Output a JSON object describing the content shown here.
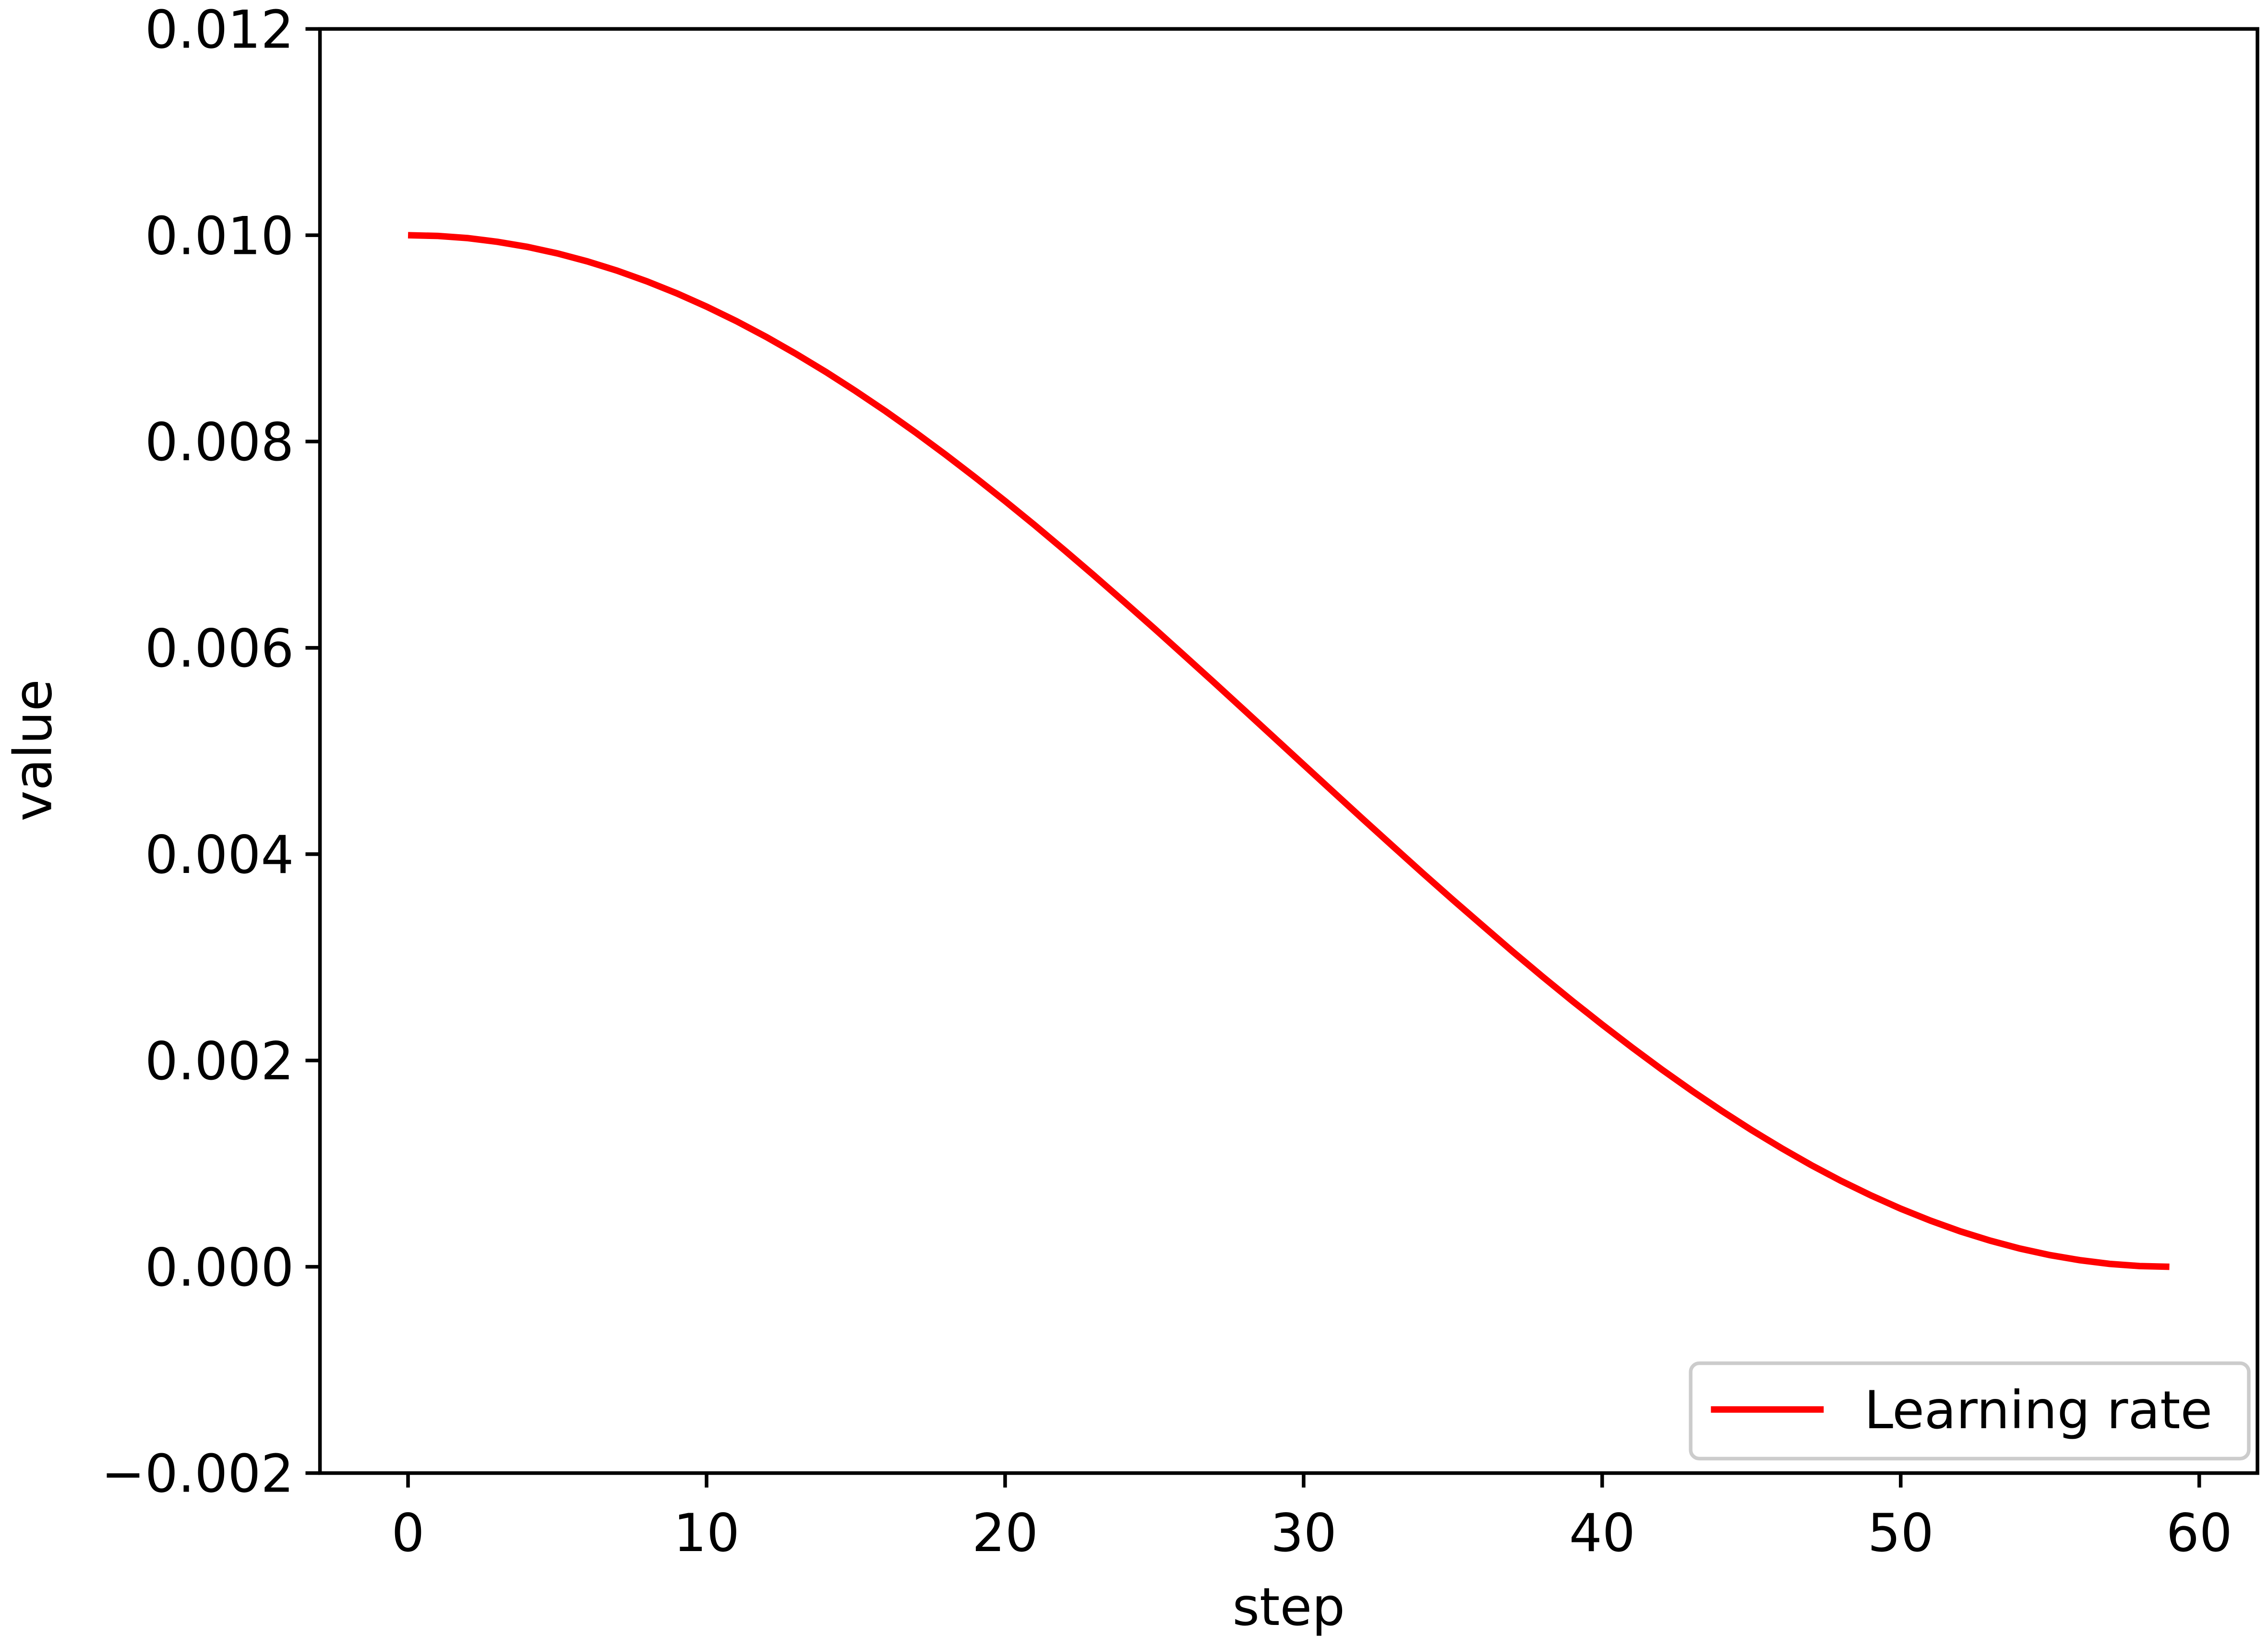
{
  "chart_data": {
    "type": "line",
    "xlabel": "step",
    "ylabel": "value",
    "x": [
      0,
      1,
      2,
      3,
      4,
      5,
      6,
      7,
      8,
      9,
      10,
      11,
      12,
      13,
      14,
      15,
      16,
      17,
      18,
      19,
      20,
      21,
      22,
      23,
      24,
      25,
      26,
      27,
      28,
      29,
      30,
      31,
      32,
      33,
      34,
      35,
      36,
      37,
      38,
      39,
      40,
      41,
      42,
      43,
      44,
      45,
      46,
      47,
      48,
      49,
      50,
      51,
      52,
      53,
      54,
      55,
      56,
      57,
      58,
      59
    ],
    "series": [
      {
        "name": "Learning rate",
        "color": "#ff0000",
        "values": [
          0.01,
          0.009993,
          0.009972,
          0.009936,
          0.009887,
          0.009824,
          0.009747,
          0.009657,
          0.009553,
          0.009437,
          0.009308,
          0.009167,
          0.009014,
          0.008849,
          0.008674,
          0.008488,
          0.008293,
          0.008088,
          0.007874,
          0.007652,
          0.007423,
          0.007187,
          0.006944,
          0.006696,
          0.006443,
          0.006187,
          0.005926,
          0.005664,
          0.005399,
          0.005133,
          0.004867,
          0.004601,
          0.004336,
          0.004074,
          0.003813,
          0.003557,
          0.003306,
          0.003056,
          0.002813,
          0.002577,
          0.002348,
          0.002126,
          0.001912,
          0.001707,
          0.001512,
          0.001326,
          0.001151,
          0.000986,
          0.000833,
          0.000692,
          0.000563,
          0.000447,
          0.000343,
          0.000253,
          0.000176,
          0.000113,
          6.4e-05,
          2.8e-05,
          7e-06,
          0
        ]
      }
    ],
    "xlim": [
      -2.95,
      61.95
    ],
    "xticks": [
      0,
      10,
      20,
      30,
      40,
      50,
      60
    ],
    "ylim": [
      -0.002,
      0.012
    ],
    "yticks": [
      {
        "value": -0.002,
        "label": "−0.002"
      },
      {
        "value": 0,
        "label": "0.000"
      },
      {
        "value": 0.002,
        "label": "0.002"
      },
      {
        "value": 0.004,
        "label": "0.004"
      },
      {
        "value": 0.006,
        "label": "0.006"
      },
      {
        "value": 0.008,
        "label": "0.008"
      },
      {
        "value": 0.01,
        "label": "0.010"
      },
      {
        "value": 0.012,
        "label": "0.012"
      }
    ],
    "grid": false,
    "legend": "lower right"
  }
}
